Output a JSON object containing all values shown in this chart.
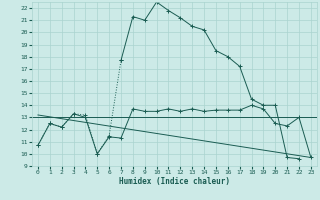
{
  "xlabel": "Humidex (Indice chaleur)",
  "bg_color": "#cceae7",
  "grid_color": "#aad4cf",
  "line_color": "#1a5c52",
  "x_hours": [
    0,
    1,
    2,
    3,
    4,
    5,
    6,
    7,
    8,
    9,
    10,
    11,
    12,
    13,
    14,
    15,
    16,
    17,
    18,
    19,
    20,
    21,
    22,
    23
  ],
  "series1_y": [
    10.7,
    12.5,
    12.2,
    13.3,
    13.0,
    10.0,
    11.4,
    11.3,
    13.7,
    13.5,
    13.5,
    13.7,
    13.5,
    13.7,
    13.5,
    13.6,
    13.6,
    13.6,
    14.0,
    13.7,
    12.5,
    12.3,
    13.0,
    9.7
  ],
  "series2_x": [
    0,
    1,
    2,
    3,
    4,
    5,
    6,
    7,
    8,
    9,
    10,
    11,
    12,
    13,
    14,
    15,
    16,
    17,
    18,
    19,
    20,
    21,
    22
  ],
  "series2_y": [
    10.7,
    12.5,
    12.2,
    13.3,
    13.2,
    10.0,
    11.5,
    17.7,
    21.3,
    21.0,
    22.5,
    21.8,
    21.2,
    20.5,
    20.2,
    18.5,
    18.0,
    17.2,
    14.5,
    14.0,
    14.0,
    9.7,
    9.6
  ],
  "series3_y": 13.0,
  "series4_x": [
    0,
    23
  ],
  "series4_y": [
    13.2,
    9.7
  ],
  "ylim": [
    9,
    22.5
  ],
  "xlim_lo": -0.5,
  "xlim_hi": 23.5,
  "yticks": [
    9,
    10,
    11,
    12,
    13,
    14,
    15,
    16,
    17,
    18,
    19,
    20,
    21,
    22
  ],
  "xticks": [
    0,
    1,
    2,
    3,
    4,
    5,
    6,
    7,
    8,
    9,
    10,
    11,
    12,
    13,
    14,
    15,
    16,
    17,
    18,
    19,
    20,
    21,
    22,
    23
  ],
  "xlabel_fontsize": 5.5,
  "tick_fontsize": 4.5
}
